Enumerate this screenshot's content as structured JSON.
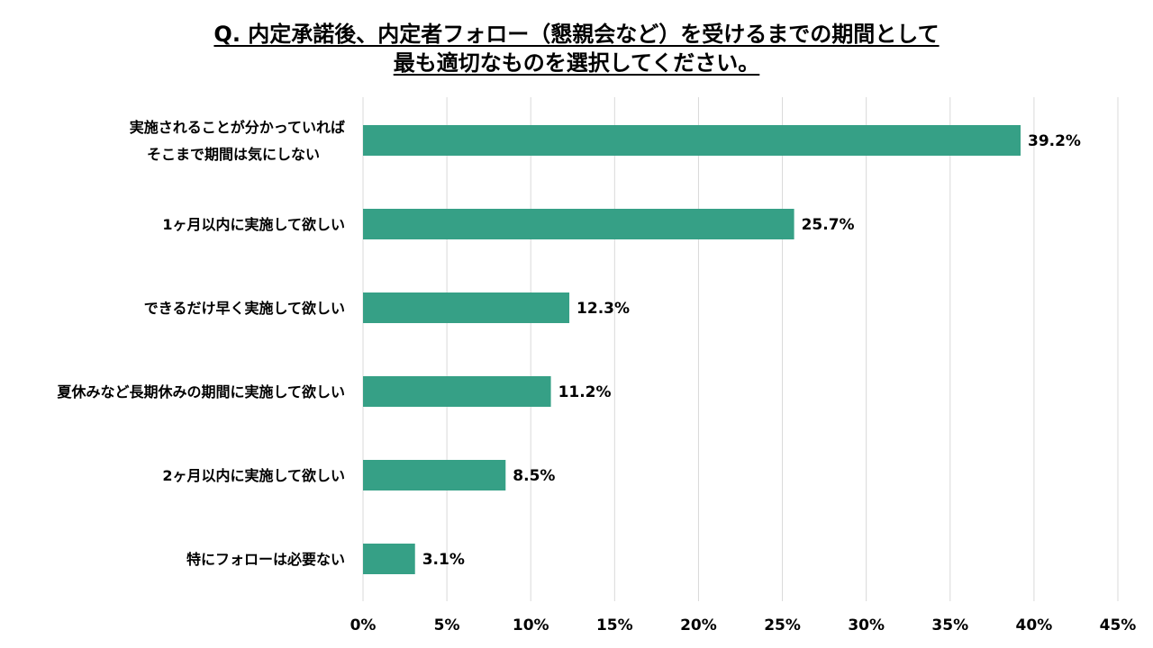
{
  "title_line1": "Q. 内定承諾後、内定者フォロー（懇親会など）を受けるまでの期間として",
  "title_line2": "最も適切なものを選択してください。",
  "chart_data": {
    "type": "bar",
    "orientation": "horizontal",
    "categories": [
      [
        "実施されることが分かっていれば",
        "そこまで期間は気にしない"
      ],
      [
        "1ヶ月以内に実施して欲しい"
      ],
      [
        "できるだけ早く実施して欲しい"
      ],
      [
        "夏休みなど長期休みの期間に実施して欲しい"
      ],
      [
        "2ヶ月以内に実施して欲しい"
      ],
      [
        "特にフォローは必要ない"
      ]
    ],
    "values": [
      39.2,
      25.7,
      12.3,
      11.2,
      8.5,
      3.1
    ],
    "value_labels": [
      "39.2%",
      "25.7%",
      "12.3%",
      "11.2%",
      "8.5%",
      "3.1%"
    ],
    "xlim": [
      0,
      45
    ],
    "xticks": [
      0,
      5,
      10,
      15,
      20,
      25,
      30,
      35,
      40,
      45
    ],
    "xtick_labels": [
      "0%",
      "5%",
      "10%",
      "15%",
      "20%",
      "25%",
      "30%",
      "35%",
      "40%",
      "45%"
    ],
    "grid": "vertical",
    "bar_color": "#36a086",
    "grid_color": "#d9d9d9"
  }
}
